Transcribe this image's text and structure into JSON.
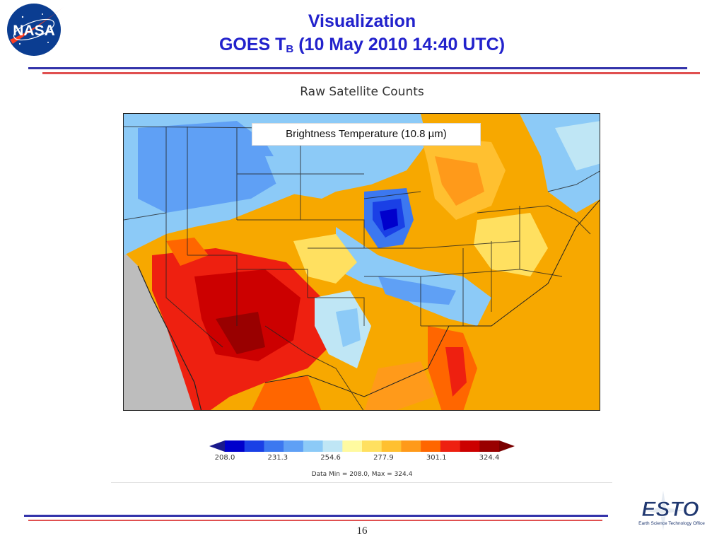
{
  "header": {
    "title_line1": "Visualization",
    "title_line2_main": "GOES T",
    "title_line2_sub": "B",
    "title_line2_rest": " (10 May 2010 14:40 UTC)"
  },
  "logos": {
    "nasa": "NASA",
    "esto": "ESTO",
    "esto_subtitle": "Earth Science Technology Office"
  },
  "figure": {
    "title": "Raw Satellite Counts",
    "label": "Brightness Temperature (10.8 µm)",
    "colorbar_ticks": [
      "208.0",
      "231.3",
      "254.6",
      "277.9",
      "301.1",
      "324.4"
    ],
    "data_range": "Data Min = 208.0, Max = 324.4"
  },
  "colors": {
    "title_blue": "#2222cc",
    "rule_blue": "#3333aa",
    "rule_red": "#e05050",
    "colorbar": [
      "#0000cc",
      "#1a40e6",
      "#3c78f0",
      "#5fa0f5",
      "#8ccaf7",
      "#bfe6f5",
      "#fffaa0",
      "#ffe060",
      "#ffc030",
      "#ff9a1a",
      "#ff6600",
      "#ee2010",
      "#cc0000",
      "#990000"
    ]
  },
  "footer": {
    "page_number": "16"
  }
}
